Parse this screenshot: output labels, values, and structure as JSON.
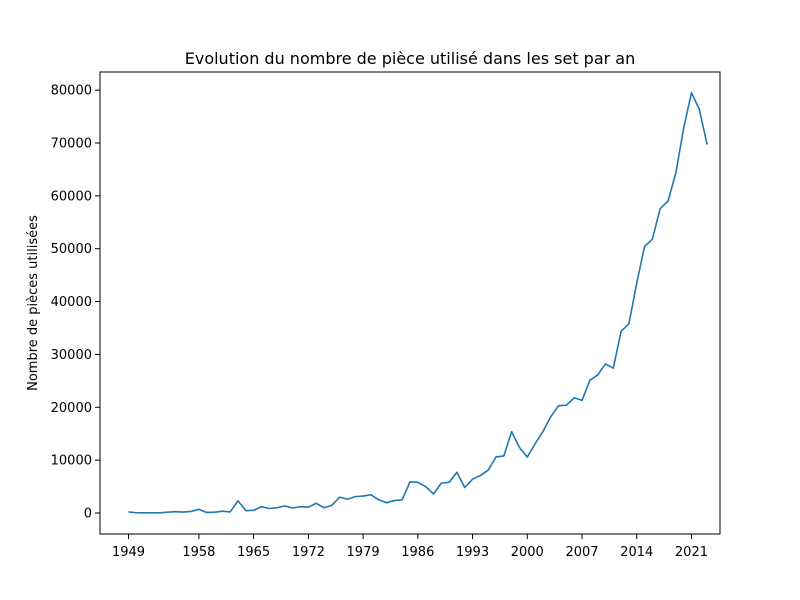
{
  "chart_data": {
    "type": "line",
    "title": "Evolution du nombre de pièce utilisé dans les set par an",
    "xlabel": "",
    "ylabel": "Nombre de pièces utilisées",
    "xlim": [
      1945.35,
      2024.65
    ],
    "ylim": [
      -3972,
      83430
    ],
    "xticks": [
      "1949",
      "1958",
      "1965",
      "1972",
      "1979",
      "1986",
      "1993",
      "2000",
      "2007",
      "2014",
      "2021"
    ],
    "yticks": [
      "0",
      "10000",
      "20000",
      "30000",
      "40000",
      "50000",
      "60000",
      "70000",
      "80000"
    ],
    "grid": false,
    "legend": "none",
    "series": [
      {
        "color": "#1f77b4",
        "x": [
          1949,
          1950,
          1951,
          1952,
          1953,
          1954,
          1955,
          1956,
          1957,
          1958,
          1959,
          1960,
          1961,
          1962,
          1963,
          1964,
          1965,
          1966,
          1967,
          1968,
          1969,
          1970,
          1971,
          1972,
          1973,
          1974,
          1975,
          1976,
          1977,
          1978,
          1979,
          1980,
          1981,
          1982,
          1983,
          1984,
          1985,
          1986,
          1987,
          1988,
          1989,
          1990,
          1991,
          1992,
          1993,
          1994,
          1995,
          1996,
          1997,
          1998,
          1999,
          2000,
          2001,
          2002,
          2003,
          2004,
          2005,
          2006,
          2007,
          2008,
          2009,
          2010,
          2011,
          2012,
          2013,
          2014,
          2015,
          2016,
          2017,
          2018,
          2019,
          2020,
          2021,
          2022,
          2023
        ],
        "values": [
          200,
          50,
          30,
          30,
          40,
          150,
          250,
          180,
          300,
          700,
          100,
          150,
          350,
          200,
          2300,
          450,
          500,
          1200,
          850,
          1000,
          1350,
          950,
          1200,
          1100,
          1850,
          1000,
          1450,
          3000,
          2600,
          3100,
          3200,
          3450,
          2500,
          1950,
          2350,
          2500,
          5900,
          5800,
          5000,
          3600,
          5650,
          5800,
          7700,
          4800,
          6400,
          7100,
          8100,
          10600,
          10800,
          15400,
          12400,
          10600,
          13100,
          15400,
          18200,
          20300,
          20400,
          21800,
          21300,
          25100,
          26100,
          28200,
          27400,
          34400,
          35800,
          43500,
          50400,
          51800,
          57600,
          59000,
          64300,
          72800,
          79500,
          76400,
          69700
        ]
      }
    ]
  }
}
